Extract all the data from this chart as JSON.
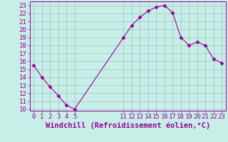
{
  "x_values": [
    0,
    1,
    2,
    3,
    4,
    5,
    11,
    12,
    13,
    14,
    15,
    16,
    17,
    18,
    19,
    20,
    21,
    22,
    23
  ],
  "y_values": [
    15.5,
    14.0,
    12.8,
    11.7,
    10.5,
    10.0,
    19.0,
    20.5,
    21.5,
    22.3,
    22.8,
    23.0,
    22.1,
    19.0,
    18.0,
    18.4,
    18.0,
    16.3,
    15.8
  ],
  "line_color": "#990099",
  "marker": "D",
  "marker_size": 2.5,
  "bg_color": "#c8eee8",
  "grid_color": "#a0ccc4",
  "xlabel": "Windchill (Refroidissement éolien,°C)",
  "xlim": [
    -0.5,
    23.5
  ],
  "ylim": [
    9.8,
    23.5
  ],
  "xticks": [
    0,
    1,
    2,
    3,
    4,
    5,
    11,
    12,
    13,
    14,
    15,
    16,
    17,
    18,
    19,
    20,
    21,
    22,
    23
  ],
  "yticks": [
    10,
    11,
    12,
    13,
    14,
    15,
    16,
    17,
    18,
    19,
    20,
    21,
    22,
    23
  ],
  "tick_color": "#990099",
  "label_color": "#990099",
  "xlabel_fontsize": 7.5,
  "tick_fontsize": 6.5
}
